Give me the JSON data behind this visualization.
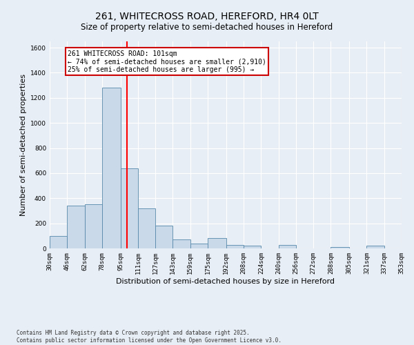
{
  "title": "261, WHITECROSS ROAD, HEREFORD, HR4 0LT",
  "subtitle": "Size of property relative to semi-detached houses in Hereford",
  "xlabel": "Distribution of semi-detached houses by size in Hereford",
  "ylabel": "Number of semi-detached properties",
  "footnote1": "Contains HM Land Registry data © Crown copyright and database right 2025.",
  "footnote2": "Contains public sector information licensed under the Open Government Licence v3.0.",
  "annotation_title": "261 WHITECROSS ROAD: 101sqm",
  "annotation_line1": "← 74% of semi-detached houses are smaller (2,910)",
  "annotation_line2": "25% of semi-detached houses are larger (995) →",
  "property_size": 101,
  "bin_edges": [
    30,
    46,
    62,
    78,
    95,
    111,
    127,
    143,
    159,
    175,
    192,
    208,
    224,
    240,
    256,
    272,
    288,
    305,
    321,
    337,
    353
  ],
  "bin_labels": [
    "30sqm",
    "46sqm",
    "62sqm",
    "78sqm",
    "95sqm",
    "111sqm",
    "127sqm",
    "143sqm",
    "159sqm",
    "175sqm",
    "192sqm",
    "208sqm",
    "224sqm",
    "240sqm",
    "256sqm",
    "272sqm",
    "288sqm",
    "305sqm",
    "321sqm",
    "337sqm",
    "353sqm"
  ],
  "bar_heights": [
    100,
    340,
    350,
    1280,
    640,
    320,
    180,
    70,
    40,
    80,
    30,
    20,
    0,
    30,
    0,
    0,
    10,
    0,
    20,
    0
  ],
  "bar_color": "#c9d9ea",
  "bar_edge_color": "#5588aa",
  "red_line_x": 101,
  "ylim": [
    0,
    1650
  ],
  "yticks": [
    0,
    200,
    400,
    600,
    800,
    1000,
    1200,
    1400,
    1600
  ],
  "bg_color": "#e8eef5",
  "plot_bg_color": "#e8eef5",
  "grid_color": "#ffffff",
  "annotation_box_color": "#ffffff",
  "annotation_box_edge": "#cc0000",
  "title_fontsize": 10,
  "subtitle_fontsize": 8.5,
  "axis_label_fontsize": 8,
  "tick_fontsize": 6.5,
  "annotation_fontsize": 7
}
